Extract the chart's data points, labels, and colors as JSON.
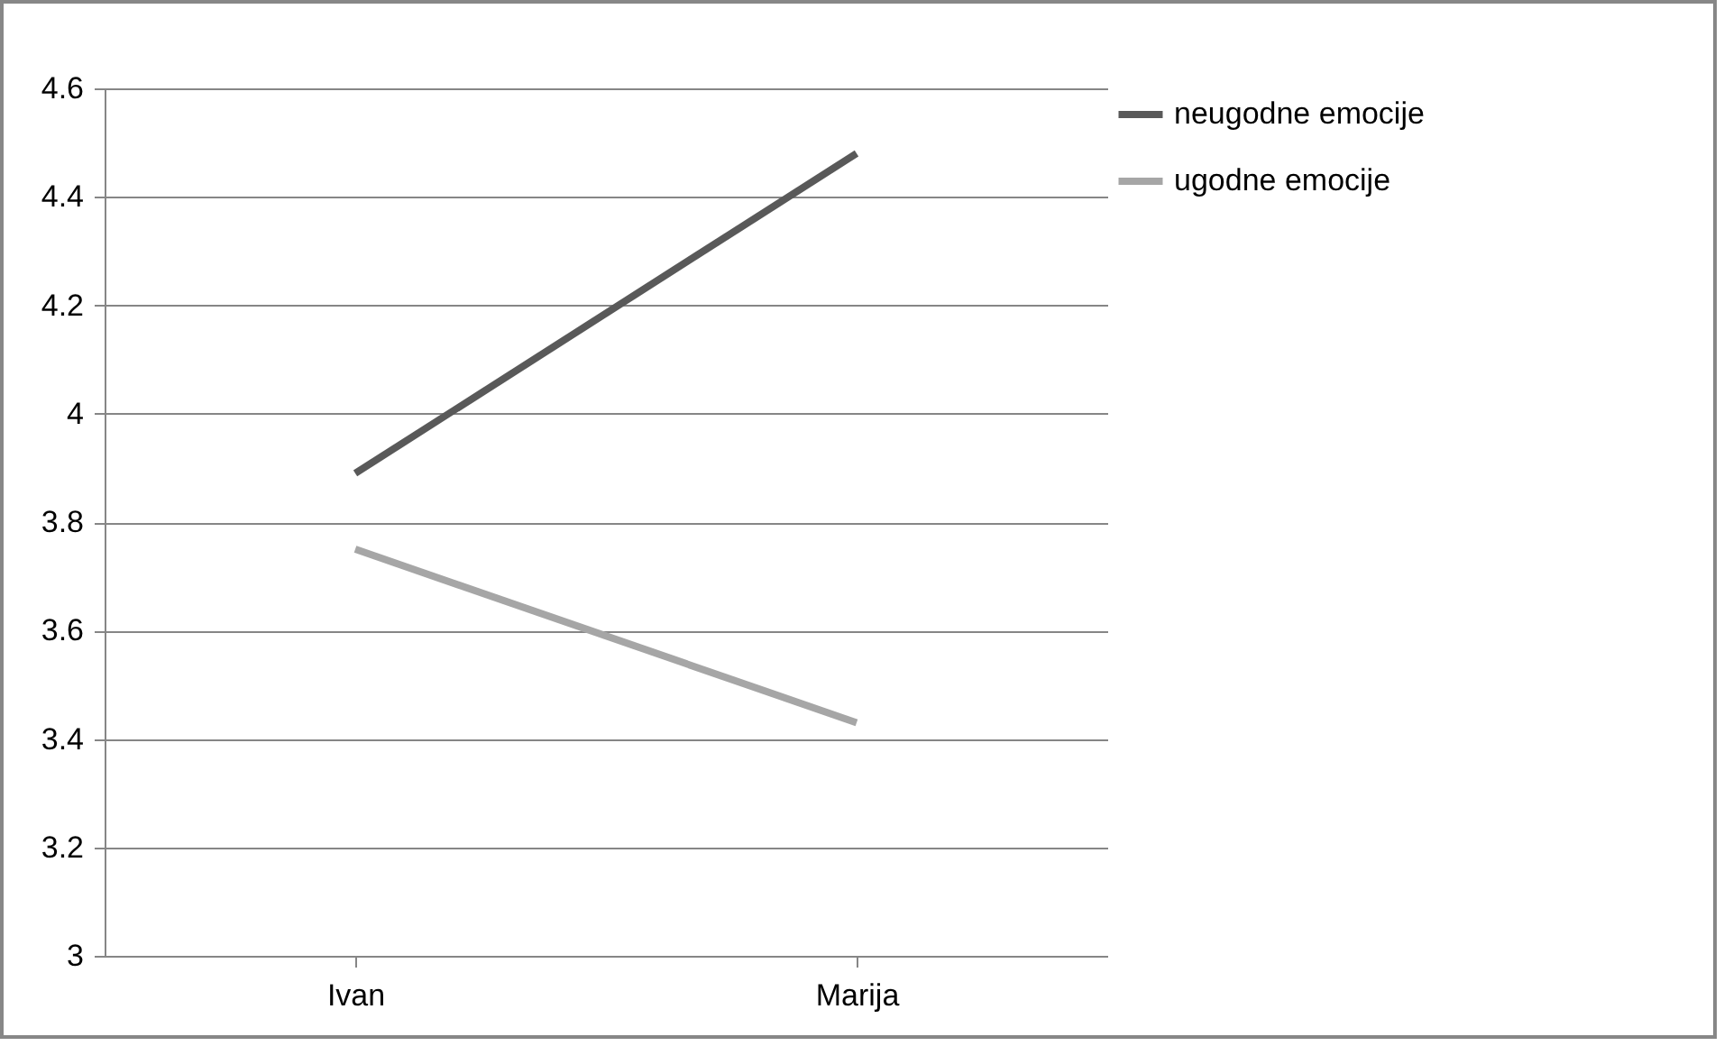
{
  "chart_data": {
    "type": "line",
    "categories": [
      "Ivan",
      "Marija"
    ],
    "series": [
      {
        "name": "neugodne emocije",
        "color": "#595959",
        "values": [
          3.89,
          4.48
        ]
      },
      {
        "name": "ugodne emocije",
        "color": "#a6a6a6",
        "values": [
          3.75,
          3.43
        ]
      }
    ],
    "ylim": [
      3,
      4.6
    ],
    "yticks": [
      3,
      3.2,
      3.4,
      3.6,
      3.8,
      4,
      4.2,
      4.4,
      4.6
    ],
    "grid": "y",
    "legend": "right",
    "marker": "none",
    "line_style": "solid"
  }
}
